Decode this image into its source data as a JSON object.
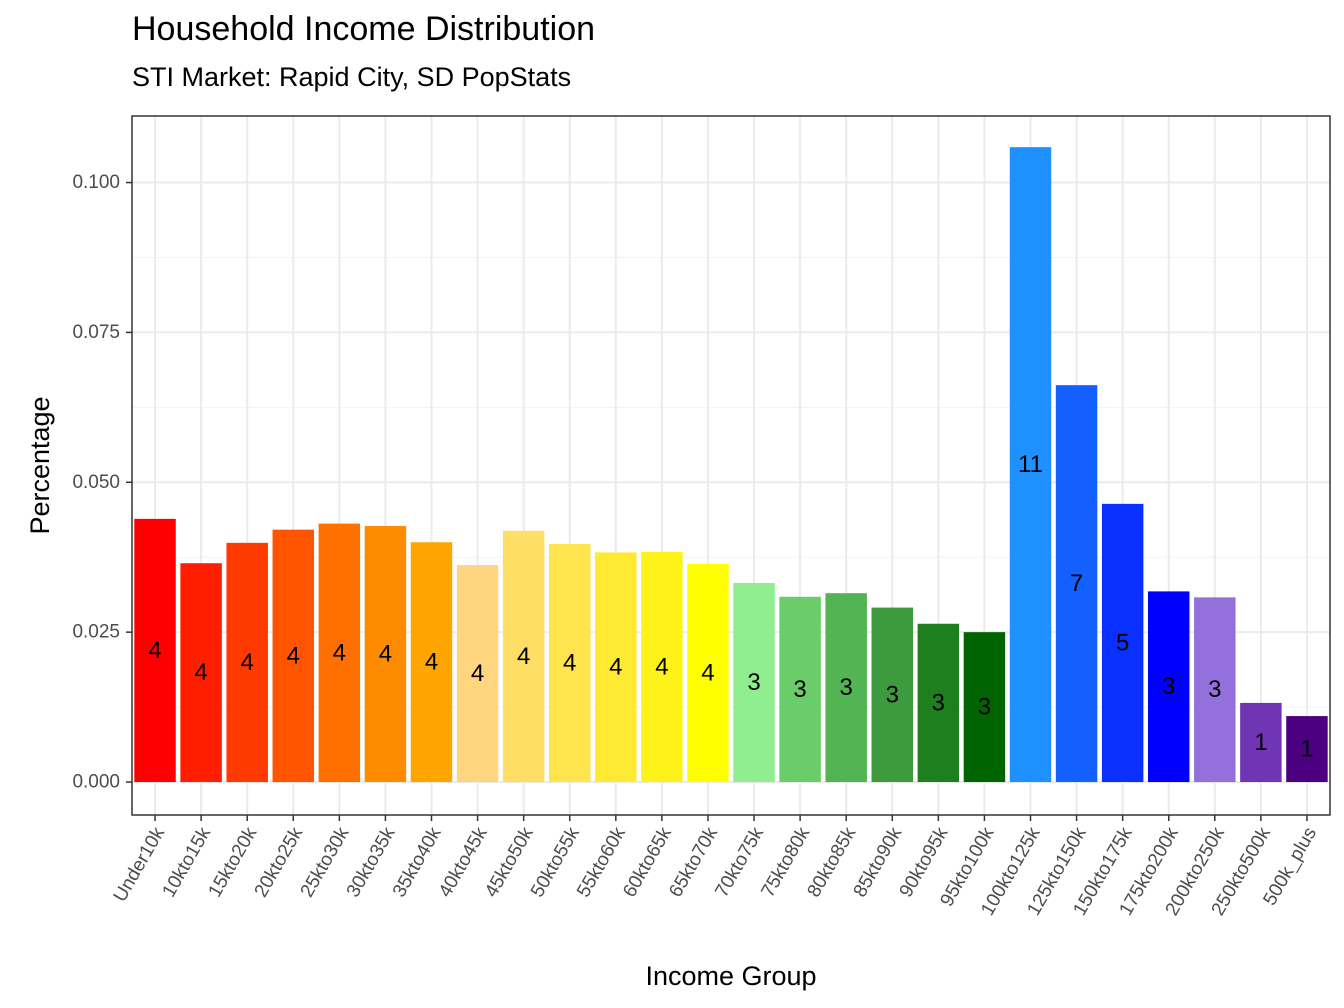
{
  "chart_data": {
    "type": "bar",
    "title": "Household Income Distribution",
    "subtitle": "STI Market: Rapid City, SD PopStats",
    "xlabel": "Income Group",
    "ylabel": "Percentage",
    "ylim": [
      -0.0055,
      0.1111
    ],
    "yticks": [
      "0.000",
      "0.025",
      "0.050",
      "0.075",
      "0.100"
    ],
    "ytick_values": [
      0,
      0.025,
      0.05,
      0.075,
      0.1
    ],
    "grid": true,
    "categories": [
      "Under10k",
      "10kto15k",
      "15kto20k",
      "20kto25k",
      "25kto30k",
      "30kto35k",
      "35kto40k",
      "40kto45k",
      "45kto50k",
      "50kto55k",
      "55kto60k",
      "60kto65k",
      "65kto70k",
      "70kto75k",
      "75kto80k",
      "80kto85k",
      "85kto90k",
      "90kto95k",
      "95kto100k",
      "100kto125k",
      "125kto150k",
      "150kto175k",
      "175kto200k",
      "200kto250k",
      "250kto500k",
      "500k_plus"
    ],
    "values": [
      0.0439,
      0.0365,
      0.0399,
      0.0421,
      0.0431,
      0.0427,
      0.04,
      0.0362,
      0.0419,
      0.0397,
      0.0383,
      0.0384,
      0.0364,
      0.0332,
      0.0309,
      0.0315,
      0.0291,
      0.0264,
      0.025,
      0.1059,
      0.0662,
      0.0464,
      0.0318,
      0.0308,
      0.0132,
      0.011
    ],
    "labels": [
      "4",
      "4",
      "4",
      "4",
      "4",
      "4",
      "4",
      "4",
      "4",
      "4",
      "4",
      "4",
      "4",
      "3",
      "3",
      "3",
      "3",
      "3",
      "3",
      "11",
      "7",
      "5",
      "3",
      "3",
      "1",
      "1"
    ],
    "colors": [
      "#FF0000",
      "#FF1F00",
      "#FF3A00",
      "#FF5500",
      "#FF7000",
      "#FF8C00",
      "#FFA500",
      "#FFD580",
      "#FFDE66",
      "#FFE44D",
      "#FFEA33",
      "#FFF21A",
      "#FFFF00",
      "#90EE90",
      "#6ACD6A",
      "#52B452",
      "#3D9B3D",
      "#1F7F1F",
      "#006400",
      "#1E90FF",
      "#1460FF",
      "#0A30FF",
      "#0000FF",
      "#9370DB",
      "#6F35B5",
      "#4B0082"
    ]
  }
}
